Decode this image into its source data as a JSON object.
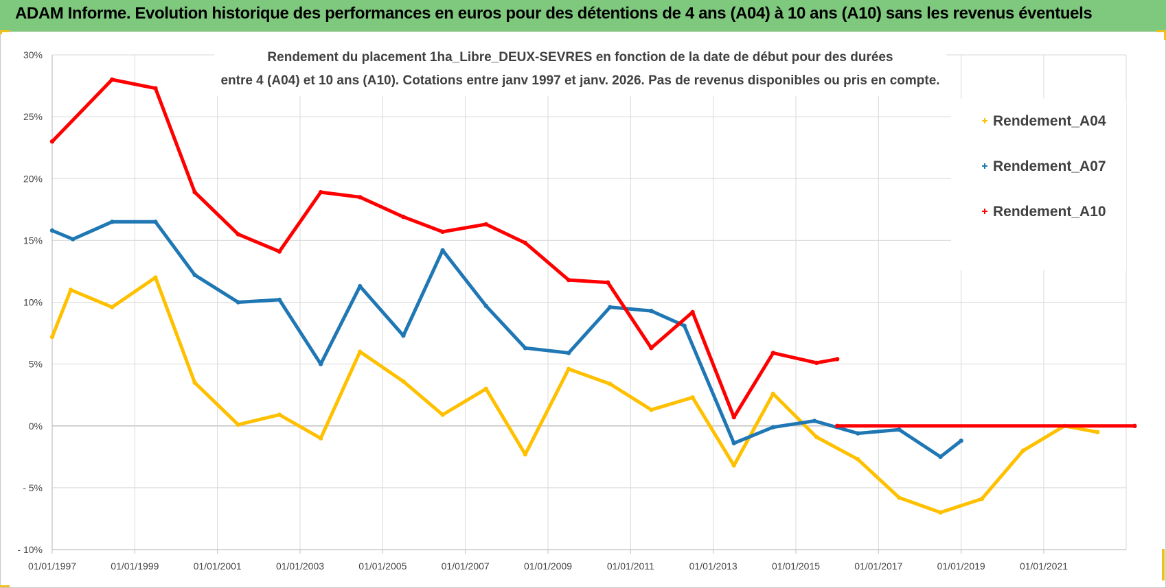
{
  "header": {
    "title": "ADAM Informe. Evolution historique des performances en euros pour des détentions de 4 ans (A04) à 10 ans (A10) sans les revenus éventuels"
  },
  "colors": {
    "header_bg": "#7fc97f",
    "a04": "#ffc000",
    "a07": "#1f77b4",
    "a10": "#ff0000",
    "grid": "#d9d9d9",
    "axis": "#bfbfbf"
  },
  "chart_data": {
    "type": "line",
    "title_lines": [
      "Rendement du placement 1ha_Libre_DEUX-SEVRES en fonction de la date de début pour des durées",
      "entre 4 (A04) et 10 ans (A10).  Cotations entre janv 1997 et janv. 2026. Pas de revenus disponibles ou pris en compte."
    ],
    "x_ticks": [
      "01/01/1997",
      "01/01/1999",
      "01/01/2001",
      "01/01/2003",
      "01/01/2005",
      "01/01/2007",
      "01/01/2009",
      "01/01/2011",
      "01/01/2013",
      "01/01/2015",
      "01/01/2017",
      "01/01/2019",
      "01/01/2021"
    ],
    "y_ticks": [
      "30%",
      "25%",
      "20%",
      "15%",
      "10%",
      "5%",
      "0%",
      "- 5%",
      "- 10%"
    ],
    "xlim": [
      1997.0,
      2023.2
    ],
    "ylim": [
      -10,
      30
    ],
    "legend_position": "top-right",
    "series": [
      {
        "name": "Rendement_A04",
        "color": "#ffc000",
        "x": [
          1997.0,
          1997.45,
          1998.45,
          1999.5,
          2000.45,
          2001.5,
          2002.5,
          2003.5,
          2004.45,
          2005.5,
          2006.45,
          2007.5,
          2008.45,
          2009.5,
          2010.5,
          2011.5,
          2012.5,
          2013.5,
          2014.45,
          2015.5,
          2016.5,
          2017.5,
          2018.5,
          2019.5,
          2020.5,
          2021.5,
          2022.3
        ],
        "values": [
          7.2,
          11.0,
          9.6,
          12.0,
          3.5,
          0.1,
          0.9,
          -1.0,
          6.0,
          3.6,
          0.9,
          3.0,
          -2.3,
          4.6,
          3.4,
          1.3,
          2.3,
          -3.2,
          2.6,
          -0.9,
          -2.7,
          -5.8,
          -7.0,
          -5.9,
          -2.0,
          0.0,
          -0.5
        ]
      },
      {
        "name": "Rendement_A07",
        "color": "#1f77b4",
        "x": [
          1997.0,
          1997.5,
          1998.45,
          1999.5,
          2000.45,
          2001.5,
          2002.5,
          2003.5,
          2004.45,
          2005.5,
          2006.45,
          2007.5,
          2008.45,
          2009.5,
          2010.5,
          2011.5,
          2012.3,
          2013.5,
          2014.45,
          2015.45,
          2016.5,
          2017.5,
          2018.5,
          2019.0
        ],
        "values": [
          15.8,
          15.1,
          16.5,
          16.5,
          12.2,
          10.0,
          10.2,
          5.0,
          11.3,
          7.3,
          14.2,
          9.7,
          6.3,
          5.9,
          9.6,
          9.3,
          8.1,
          -1.4,
          -0.1,
          0.4,
          -0.6,
          -0.3,
          -2.5,
          -1.2
        ]
      },
      {
        "name": "Rendement_A10",
        "color": "#ff0000",
        "x": [
          1997.0,
          1998.45,
          1999.5,
          2000.45,
          2001.5,
          2002.5,
          2003.5,
          2004.45,
          2005.5,
          2006.45,
          2007.5,
          2008.45,
          2009.5,
          2010.45,
          2011.5,
          2012.5,
          2013.5,
          2014.45,
          2015.5,
          2016.0
        ],
        "values": [
          23.0,
          28.0,
          27.3,
          18.9,
          15.5,
          14.1,
          18.9,
          18.5,
          16.9,
          15.7,
          16.3,
          14.8,
          11.8,
          11.6,
          6.3,
          9.2,
          0.7,
          5.9,
          5.1,
          5.4
        ]
      },
      {
        "name": "Rendement_A10",
        "color": "#ff0000",
        "x": [
          2016.0,
          2023.2
        ],
        "values": [
          0.0,
          0.0
        ]
      }
    ]
  },
  "legend": [
    {
      "label": "Rendement_A04",
      "color": "#ffc000"
    },
    {
      "label": "Rendement_A07",
      "color": "#1f77b4"
    },
    {
      "label": "Rendement_A10",
      "color": "#ff0000"
    }
  ]
}
